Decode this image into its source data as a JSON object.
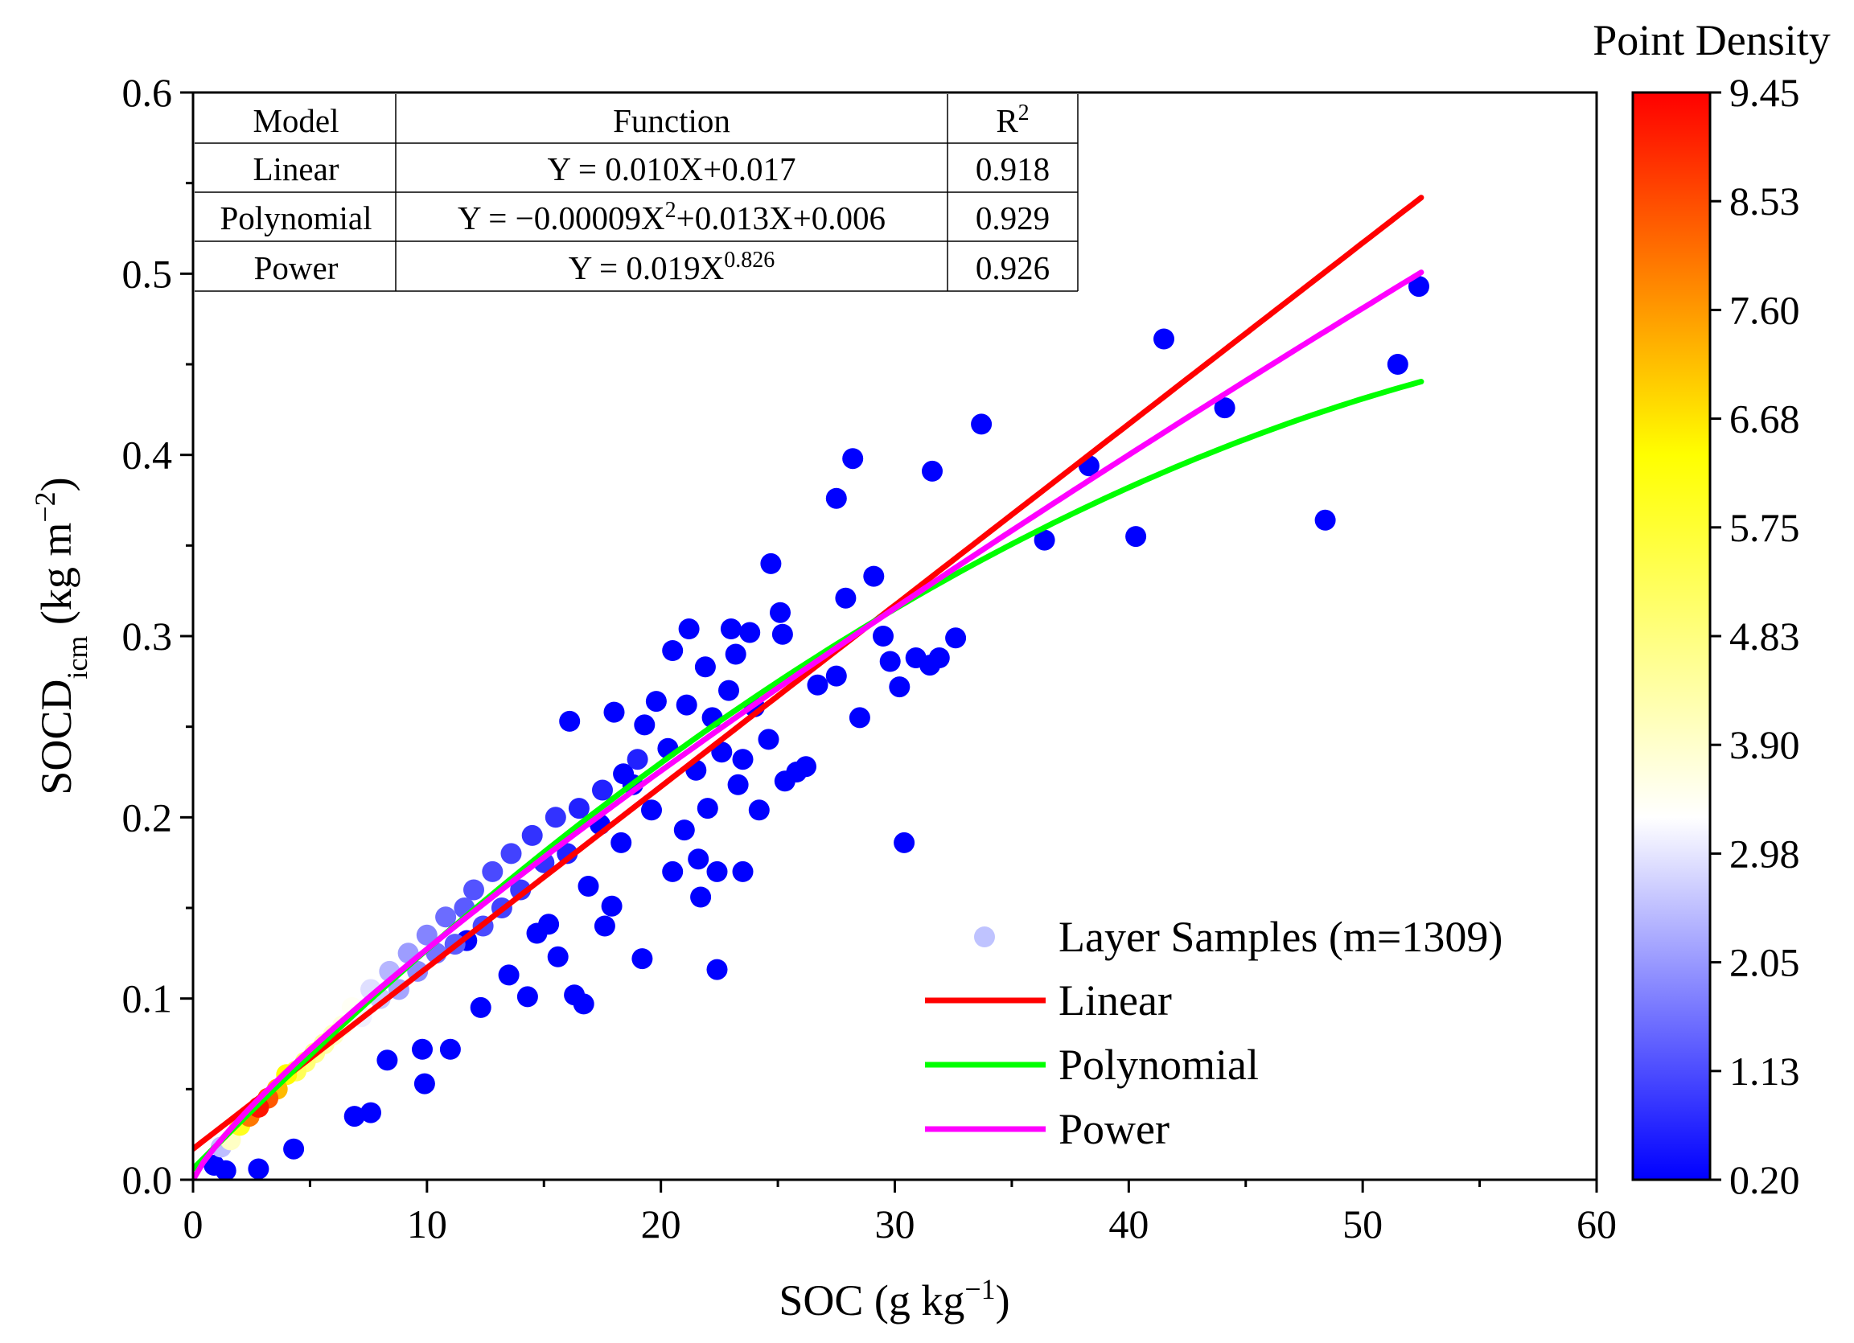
{
  "chart_data": {
    "type": "scatter",
    "xlabel": {
      "main": "SOC (g kg",
      "sup": "−1",
      "tail": ")"
    },
    "ylabel": {
      "main": "SOCD",
      "sub": "icm",
      "tail": " (kg m",
      "sup": "−2",
      "end": ")"
    },
    "xlim": [
      0,
      60
    ],
    "ylim": [
      0,
      0.6
    ],
    "x_ticks": [
      "0",
      "10",
      "20",
      "30",
      "40",
      "50",
      "60"
    ],
    "y_ticks": [
      "0.0",
      "0.1",
      "0.2",
      "0.3",
      "0.4",
      "0.5",
      "0.6"
    ],
    "colorbar": {
      "title": "Point Density",
      "range": [
        0.2,
        9.45
      ],
      "ticks": [
        "0.20",
        "1.13",
        "2.05",
        "2.98",
        "3.90",
        "4.83",
        "5.75",
        "6.68",
        "7.60",
        "8.53",
        "9.45"
      ],
      "colors": [
        "#0000ff",
        "#ffffff",
        "#ffff00",
        "#ff0000"
      ]
    },
    "fit_table": {
      "headers": [
        "Model",
        "Function",
        "R2"
      ],
      "rows": [
        {
          "model": "Linear",
          "function": "Y = 0.010X+0.017",
          "r2": "0.918"
        },
        {
          "model": "Polynomial",
          "function": "Y = −0.00009X2+0.013X+0.006",
          "r2": "0.929"
        },
        {
          "model": "Power",
          "function": "Y = 0.019X0.826",
          "r2": "0.926"
        }
      ]
    },
    "fits": [
      {
        "name": "Linear",
        "color": "#ff0000",
        "kind": "linear",
        "a": 0.01,
        "b": 0.017,
        "x_range": [
          0,
          52.5
        ]
      },
      {
        "name": "Polynomial",
        "color": "#00ff00",
        "kind": "polynomial",
        "a": -9e-05,
        "b": 0.013,
        "c": 0.006,
        "x_range": [
          0,
          52.5
        ]
      },
      {
        "name": "Power",
        "color": "#ff00ff",
        "kind": "power",
        "a": 0.019,
        "b": 0.826,
        "x_range": [
          0,
          52.5
        ]
      }
    ],
    "legend": {
      "position": "bottom-right",
      "scatter_label": "Layer Samples (m=1309)",
      "scatter_color": "#bfc3ff",
      "line_labels": [
        "Linear",
        "Polynomial",
        "Power"
      ]
    },
    "series": [
      {
        "name": "Layer Samples (m=1309)",
        "points": [
          {
            "x": 52.4,
            "y": 0.493,
            "d": 0.2
          },
          {
            "x": 51.5,
            "y": 0.45,
            "d": 0.2
          },
          {
            "x": 48.4,
            "y": 0.364,
            "d": 0.2
          },
          {
            "x": 44.1,
            "y": 0.426,
            "d": 0.2
          },
          {
            "x": 41.5,
            "y": 0.464,
            "d": 0.2
          },
          {
            "x": 40.3,
            "y": 0.355,
            "d": 0.2
          },
          {
            "x": 38.3,
            "y": 0.394,
            "d": 0.2
          },
          {
            "x": 36.4,
            "y": 0.353,
            "d": 0.2
          },
          {
            "x": 33.7,
            "y": 0.417,
            "d": 0.2
          },
          {
            "x": 31.6,
            "y": 0.391,
            "d": 0.2
          },
          {
            "x": 32.6,
            "y": 0.299,
            "d": 0.2
          },
          {
            "x": 31.9,
            "y": 0.288,
            "d": 0.2
          },
          {
            "x": 31.5,
            "y": 0.284,
            "d": 0.2
          },
          {
            "x": 30.9,
            "y": 0.288,
            "d": 0.2
          },
          {
            "x": 30.4,
            "y": 0.186,
            "d": 0.2
          },
          {
            "x": 30.2,
            "y": 0.272,
            "d": 0.2
          },
          {
            "x": 29.8,
            "y": 0.286,
            "d": 0.2
          },
          {
            "x": 29.5,
            "y": 0.3,
            "d": 0.2
          },
          {
            "x": 29.1,
            "y": 0.333,
            "d": 0.2
          },
          {
            "x": 28.2,
            "y": 0.398,
            "d": 0.2
          },
          {
            "x": 27.9,
            "y": 0.321,
            "d": 0.2
          },
          {
            "x": 27.5,
            "y": 0.376,
            "d": 0.2
          },
          {
            "x": 27.5,
            "y": 0.278,
            "d": 0.2
          },
          {
            "x": 28.5,
            "y": 0.255,
            "d": 0.2
          },
          {
            "x": 26.7,
            "y": 0.273,
            "d": 0.2
          },
          {
            "x": 26.2,
            "y": 0.228,
            "d": 0.2
          },
          {
            "x": 25.8,
            "y": 0.225,
            "d": 0.2
          },
          {
            "x": 25.3,
            "y": 0.22,
            "d": 0.2
          },
          {
            "x": 25.1,
            "y": 0.313,
            "d": 0.2
          },
          {
            "x": 25.2,
            "y": 0.301,
            "d": 0.2
          },
          {
            "x": 24.7,
            "y": 0.34,
            "d": 0.2
          },
          {
            "x": 24.6,
            "y": 0.243,
            "d": 0.2
          },
          {
            "x": 24.2,
            "y": 0.204,
            "d": 0.2
          },
          {
            "x": 24.0,
            "y": 0.261,
            "d": 0.2
          },
          {
            "x": 23.8,
            "y": 0.302,
            "d": 0.2
          },
          {
            "x": 23.5,
            "y": 0.232,
            "d": 0.2
          },
          {
            "x": 23.5,
            "y": 0.17,
            "d": 0.2
          },
          {
            "x": 23.2,
            "y": 0.29,
            "d": 0.2
          },
          {
            "x": 23.3,
            "y": 0.218,
            "d": 0.2
          },
          {
            "x": 23.0,
            "y": 0.304,
            "d": 0.2
          },
          {
            "x": 22.9,
            "y": 0.27,
            "d": 0.2
          },
          {
            "x": 22.6,
            "y": 0.236,
            "d": 0.2
          },
          {
            "x": 22.4,
            "y": 0.116,
            "d": 0.2
          },
          {
            "x": 22.4,
            "y": 0.17,
            "d": 0.2
          },
          {
            "x": 22.2,
            "y": 0.255,
            "d": 0.2
          },
          {
            "x": 22.0,
            "y": 0.205,
            "d": 0.2
          },
          {
            "x": 21.9,
            "y": 0.283,
            "d": 0.2
          },
          {
            "x": 21.6,
            "y": 0.177,
            "d": 0.2
          },
          {
            "x": 21.7,
            "y": 0.156,
            "d": 0.2
          },
          {
            "x": 21.5,
            "y": 0.226,
            "d": 0.2
          },
          {
            "x": 21.2,
            "y": 0.304,
            "d": 0.2
          },
          {
            "x": 21.1,
            "y": 0.262,
            "d": 0.2
          },
          {
            "x": 21.0,
            "y": 0.193,
            "d": 0.2
          },
          {
            "x": 20.5,
            "y": 0.292,
            "d": 0.2
          },
          {
            "x": 20.5,
            "y": 0.17,
            "d": 0.2
          },
          {
            "x": 20.3,
            "y": 0.238,
            "d": 0.2
          },
          {
            "x": 19.8,
            "y": 0.264,
            "d": 0.2
          },
          {
            "x": 19.6,
            "y": 0.204,
            "d": 0.2
          },
          {
            "x": 19.3,
            "y": 0.251,
            "d": 0.2
          },
          {
            "x": 19.2,
            "y": 0.122,
            "d": 0.2
          },
          {
            "x": 18.8,
            "y": 0.218,
            "d": 0.2
          },
          {
            "x": 18.4,
            "y": 0.224,
            "d": 0.2
          },
          {
            "x": 18.3,
            "y": 0.186,
            "d": 0.2
          },
          {
            "x": 18.0,
            "y": 0.258,
            "d": 0.2
          },
          {
            "x": 17.9,
            "y": 0.151,
            "d": 0.2
          },
          {
            "x": 17.6,
            "y": 0.14,
            "d": 0.2
          },
          {
            "x": 17.4,
            "y": 0.196,
            "d": 0.2
          },
          {
            "x": 16.9,
            "y": 0.162,
            "d": 0.2
          },
          {
            "x": 16.7,
            "y": 0.097,
            "d": 0.2
          },
          {
            "x": 16.3,
            "y": 0.102,
            "d": 0.2
          },
          {
            "x": 16.1,
            "y": 0.253,
            "d": 0.2
          },
          {
            "x": 15.6,
            "y": 0.123,
            "d": 0.2
          },
          {
            "x": 15.2,
            "y": 0.141,
            "d": 0.2
          },
          {
            "x": 14.7,
            "y": 0.136,
            "d": 0.2
          },
          {
            "x": 14.3,
            "y": 0.101,
            "d": 0.2
          },
          {
            "x": 13.5,
            "y": 0.113,
            "d": 0.2
          },
          {
            "x": 12.3,
            "y": 0.095,
            "d": 0.2
          },
          {
            "x": 11.7,
            "y": 0.132,
            "d": 0.2
          },
          {
            "x": 11.0,
            "y": 0.072,
            "d": 0.2
          },
          {
            "x": 9.9,
            "y": 0.053,
            "d": 0.2
          },
          {
            "x": 9.8,
            "y": 0.072,
            "d": 0.2
          },
          {
            "x": 8.3,
            "y": 0.066,
            "d": 0.2
          },
          {
            "x": 7.6,
            "y": 0.037,
            "d": 0.2
          },
          {
            "x": 6.9,
            "y": 0.035,
            "d": 0.2
          },
          {
            "x": 4.3,
            "y": 0.017,
            "d": 0.2
          },
          {
            "x": 2.8,
            "y": 0.006,
            "d": 0.2
          },
          {
            "x": 1.4,
            "y": 0.005,
            "d": 0.2
          },
          {
            "x": 0.9,
            "y": 0.008,
            "d": 0.2
          },
          {
            "x": 19.0,
            "y": 0.232,
            "d": 0.6
          },
          {
            "x": 17.5,
            "y": 0.215,
            "d": 0.6
          },
          {
            "x": 16.5,
            "y": 0.205,
            "d": 0.6
          },
          {
            "x": 16.0,
            "y": 0.18,
            "d": 0.6
          },
          {
            "x": 15.5,
            "y": 0.2,
            "d": 0.8
          },
          {
            "x": 15.0,
            "y": 0.175,
            "d": 0.8
          },
          {
            "x": 14.5,
            "y": 0.19,
            "d": 0.8
          },
          {
            "x": 14.0,
            "y": 0.16,
            "d": 0.9
          },
          {
            "x": 13.6,
            "y": 0.18,
            "d": 1.0
          },
          {
            "x": 13.2,
            "y": 0.15,
            "d": 1.0
          },
          {
            "x": 12.8,
            "y": 0.17,
            "d": 1.1
          },
          {
            "x": 12.4,
            "y": 0.14,
            "d": 1.1
          },
          {
            "x": 12.0,
            "y": 0.16,
            "d": 1.2
          },
          {
            "x": 11.6,
            "y": 0.15,
            "d": 1.3
          },
          {
            "x": 11.2,
            "y": 0.13,
            "d": 1.3
          },
          {
            "x": 10.8,
            "y": 0.145,
            "d": 1.5
          },
          {
            "x": 10.4,
            "y": 0.125,
            "d": 1.6
          },
          {
            "x": 10.0,
            "y": 0.135,
            "d": 1.8
          },
          {
            "x": 9.6,
            "y": 0.115,
            "d": 1.9
          },
          {
            "x": 9.2,
            "y": 0.125,
            "d": 2.1
          },
          {
            "x": 8.8,
            "y": 0.105,
            "d": 2.2
          },
          {
            "x": 8.4,
            "y": 0.115,
            "d": 2.4
          },
          {
            "x": 8.0,
            "y": 0.1,
            "d": 2.6
          },
          {
            "x": 7.6,
            "y": 0.105,
            "d": 2.9
          },
          {
            "x": 7.2,
            "y": 0.09,
            "d": 3.1
          },
          {
            "x": 6.8,
            "y": 0.095,
            "d": 3.4
          },
          {
            "x": 6.4,
            "y": 0.085,
            "d": 3.7
          },
          {
            "x": 6.0,
            "y": 0.08,
            "d": 4.0
          },
          {
            "x": 5.6,
            "y": 0.075,
            "d": 4.3
          },
          {
            "x": 5.2,
            "y": 0.07,
            "d": 4.6
          },
          {
            "x": 4.8,
            "y": 0.065,
            "d": 4.9
          },
          {
            "x": 4.4,
            "y": 0.06,
            "d": 5.3
          },
          {
            "x": 4.0,
            "y": 0.058,
            "d": 6.4
          },
          {
            "x": 3.6,
            "y": 0.05,
            "d": 7.2
          },
          {
            "x": 3.2,
            "y": 0.045,
            "d": 8.4
          },
          {
            "x": 2.8,
            "y": 0.04,
            "d": 9.2
          },
          {
            "x": 2.4,
            "y": 0.035,
            "d": 8.0
          },
          {
            "x": 2.0,
            "y": 0.03,
            "d": 6.0
          },
          {
            "x": 1.6,
            "y": 0.022,
            "d": 4.0
          },
          {
            "x": 1.2,
            "y": 0.018,
            "d": 2.5
          }
        ]
      }
    ]
  }
}
